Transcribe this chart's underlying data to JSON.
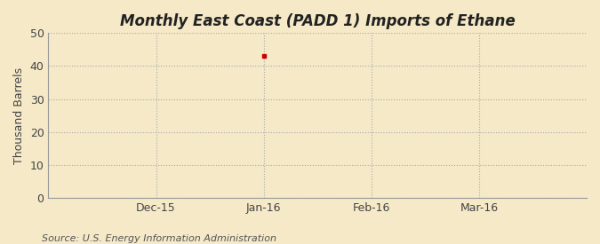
{
  "title": "Monthly East Coast (PADD 1) Imports of Ethane",
  "ylabel": "Thousand Barrels",
  "source": "Source: U.S. Energy Information Administration",
  "background_color": "#f5e9c8",
  "plot_bg_color": "#f5e9c8",
  "ylim": [
    0,
    50
  ],
  "yticks": [
    0,
    10,
    20,
    30,
    40,
    50
  ],
  "x_tick_labels": [
    "Dec-15",
    "Jan-16",
    "Feb-16",
    "Mar-16"
  ],
  "x_tick_positions": [
    1,
    2,
    3,
    4
  ],
  "data_point_x": 2,
  "data_point_y": 43,
  "data_color": "#cc0000",
  "title_fontsize": 12,
  "label_fontsize": 9,
  "tick_fontsize": 9,
  "source_fontsize": 8,
  "grid_color": "#aaaaaa",
  "grid_style": ":",
  "grid_linewidth": 0.8,
  "x_range": [
    0,
    5
  ],
  "vline_positions": [
    0,
    1,
    2,
    3,
    4
  ]
}
